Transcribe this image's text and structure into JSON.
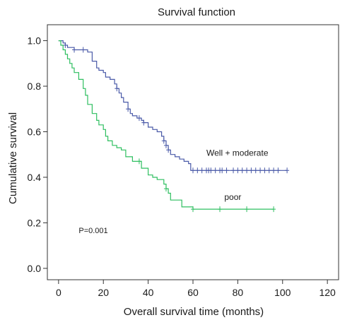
{
  "chart_data": {
    "type": "line",
    "step": true,
    "title": "Survival function",
    "xlabel": "Overall survival time (months)",
    "ylabel": "Cumulative survival",
    "xlim": [
      -5,
      125
    ],
    "ylim": [
      -0.05,
      1.07
    ],
    "xticks": [
      0,
      20,
      40,
      60,
      80,
      100,
      120
    ],
    "yticks": [
      0.0,
      0.2,
      0.4,
      0.6,
      0.8,
      1.0
    ],
    "xtick_labels": [
      "0",
      "20",
      "40",
      "60",
      "80",
      "100",
      "120"
    ],
    "ytick_labels": [
      "0.0",
      "0.2",
      "0.4",
      "0.6",
      "0.8",
      "1.0"
    ],
    "grid": false,
    "series": [
      {
        "name": "Well + moderate",
        "color": "#4a5aa8",
        "x": [
          0,
          2,
          3,
          4,
          7,
          9,
          13,
          15,
          17,
          18,
          20,
          21,
          23,
          25,
          26,
          27,
          28,
          29,
          31,
          32,
          33,
          35,
          37,
          38,
          40,
          42,
          44,
          46,
          47,
          48,
          49,
          50,
          52,
          54,
          56,
          58,
          59,
          102
        ],
        "y": [
          1.0,
          0.99,
          0.98,
          0.97,
          0.96,
          0.96,
          0.95,
          0.91,
          0.88,
          0.87,
          0.86,
          0.84,
          0.83,
          0.81,
          0.79,
          0.77,
          0.75,
          0.73,
          0.7,
          0.68,
          0.67,
          0.66,
          0.65,
          0.64,
          0.62,
          0.61,
          0.6,
          0.58,
          0.56,
          0.54,
          0.52,
          0.5,
          0.49,
          0.48,
          0.47,
          0.46,
          0.43,
          0.43
        ],
        "censor_x": [
          3,
          7,
          11,
          26,
          31,
          36,
          38,
          47,
          48,
          49,
          60,
          62,
          64,
          66,
          67,
          68,
          70,
          72,
          73,
          75,
          78,
          80,
          82,
          84,
          86,
          88,
          90,
          92,
          94,
          96,
          98,
          102
        ]
      },
      {
        "name": "poor",
        "color": "#2fbf60",
        "x": [
          0,
          1,
          2,
          3,
          4,
          5,
          6,
          7,
          9,
          11,
          12,
          13,
          15,
          17,
          18,
          20,
          21,
          22,
          24,
          26,
          28,
          30,
          33,
          37,
          40,
          42,
          44,
          47,
          48,
          49,
          50,
          55,
          60,
          96
        ],
        "y": [
          1.0,
          0.98,
          0.96,
          0.94,
          0.92,
          0.9,
          0.88,
          0.86,
          0.83,
          0.79,
          0.76,
          0.72,
          0.68,
          0.65,
          0.63,
          0.61,
          0.58,
          0.56,
          0.54,
          0.53,
          0.52,
          0.49,
          0.47,
          0.44,
          0.41,
          0.4,
          0.39,
          0.37,
          0.35,
          0.33,
          0.3,
          0.27,
          0.26,
          0.26
        ],
        "censor_x": [
          36,
          48,
          60,
          72,
          84,
          96
        ]
      }
    ],
    "annotations": [
      {
        "text": "Well + moderate",
        "x": 66,
        "y": 0.495,
        "class": "annot"
      },
      {
        "text": "poor",
        "x": 74,
        "y": 0.3,
        "class": "annot"
      },
      {
        "text": "P=0.001",
        "x": 9,
        "y": 0.155,
        "class": "pval"
      }
    ]
  }
}
